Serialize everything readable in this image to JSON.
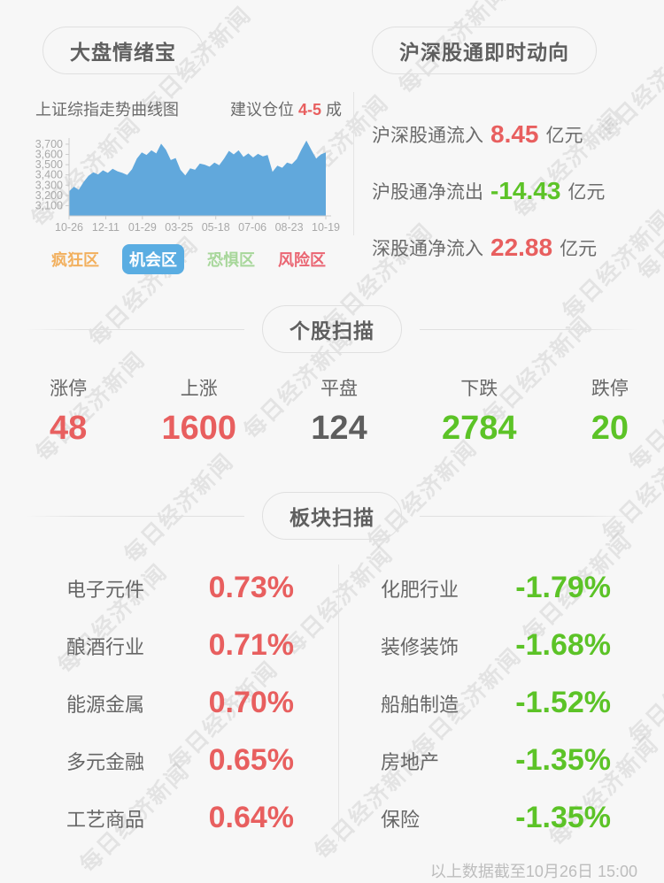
{
  "page": {
    "watermark_text": "每日经济新闻",
    "footer_note": "以上数据截至10月26日 15:00"
  },
  "colors": {
    "red": "#e85f5f",
    "green": "#5cc327",
    "gray": "#5e5e5e",
    "chart_blue": "#61a8dc",
    "zone_orange": "#f2b05e",
    "zone_blue": "#5aade2",
    "zone_green": "#a8d79b",
    "zone_red": "#ea6673"
  },
  "sentiment_panel": {
    "title": "大盘情绪宝",
    "chart_caption": "上证综指走势曲线图",
    "position_prefix": "建议仓位",
    "position_value": "4-5",
    "position_suffix": "成",
    "zones": [
      {
        "label": "疯狂区",
        "color": "#f2b05e",
        "active": false
      },
      {
        "label": "机会区",
        "color": "#5aade2",
        "active": true
      },
      {
        "label": "恐惧区",
        "color": "#a8d79b",
        "active": false
      },
      {
        "label": "风险区",
        "color": "#ea6673",
        "active": false
      }
    ]
  },
  "chart_data": {
    "type": "area",
    "title": "上证综指走势曲线图",
    "x_tick_labels": [
      "10-26",
      "12-11",
      "01-29",
      "03-25",
      "05-18",
      "07-06",
      "08-23",
      "10-19"
    ],
    "y_tick_labels": [
      "3,700",
      "3,600",
      "3,500",
      "3,400",
      "3,300",
      "3,200",
      "3,100"
    ],
    "ylim": [
      3000,
      3760
    ],
    "grid": false,
    "fill_color": "#61a8dc",
    "series": [
      {
        "name": "上证综指",
        "values": [
          3240,
          3285,
          3255,
          3330,
          3390,
          3425,
          3405,
          3445,
          3420,
          3460,
          3435,
          3420,
          3400,
          3455,
          3560,
          3620,
          3595,
          3640,
          3610,
          3705,
          3645,
          3545,
          3565,
          3450,
          3395,
          3465,
          3450,
          3510,
          3500,
          3480,
          3520,
          3495,
          3560,
          3635,
          3600,
          3640,
          3575,
          3610,
          3570,
          3605,
          3580,
          3595,
          3430,
          3490,
          3470,
          3520,
          3505,
          3555,
          3650,
          3735,
          3645,
          3560,
          3600,
          3620
        ]
      }
    ]
  },
  "northbound_panel": {
    "title": "沪深股通即时动向",
    "rows": [
      {
        "label": "沪深股通流入",
        "value": "8.45",
        "unit": "亿元",
        "color": "red"
      },
      {
        "label": "沪股通净流出",
        "value": "-14.43",
        "unit": "亿元",
        "color": "green"
      },
      {
        "label": "深股通净流入",
        "value": "22.88",
        "unit": "亿元",
        "color": "red"
      }
    ]
  },
  "stock_scan": {
    "title": "个股扫描",
    "items": [
      {
        "label": "涨停",
        "value": "48",
        "color": "red"
      },
      {
        "label": "上涨",
        "value": "1600",
        "color": "red"
      },
      {
        "label": "平盘",
        "value": "124",
        "color": "gray"
      },
      {
        "label": "下跌",
        "value": "2784",
        "color": "green"
      },
      {
        "label": "跌停",
        "value": "20",
        "color": "green"
      }
    ]
  },
  "sector_scan": {
    "title": "板块扫描",
    "gainers": [
      {
        "label": "电子元件",
        "value": "0.73%",
        "color": "red"
      },
      {
        "label": "酿酒行业",
        "value": "0.71%",
        "color": "red"
      },
      {
        "label": "能源金属",
        "value": "0.70%",
        "color": "red"
      },
      {
        "label": "多元金融",
        "value": "0.65%",
        "color": "red"
      },
      {
        "label": "工艺商品",
        "value": "0.64%",
        "color": "red"
      }
    ],
    "losers": [
      {
        "label": "化肥行业",
        "value": "-1.79%",
        "color": "green"
      },
      {
        "label": "装修装饰",
        "value": "-1.68%",
        "color": "green"
      },
      {
        "label": "船舶制造",
        "value": "-1.52%",
        "color": "green"
      },
      {
        "label": "房地产",
        "value": "-1.35%",
        "color": "green"
      },
      {
        "label": "保险",
        "value": "-1.35%",
        "color": "green"
      }
    ]
  }
}
